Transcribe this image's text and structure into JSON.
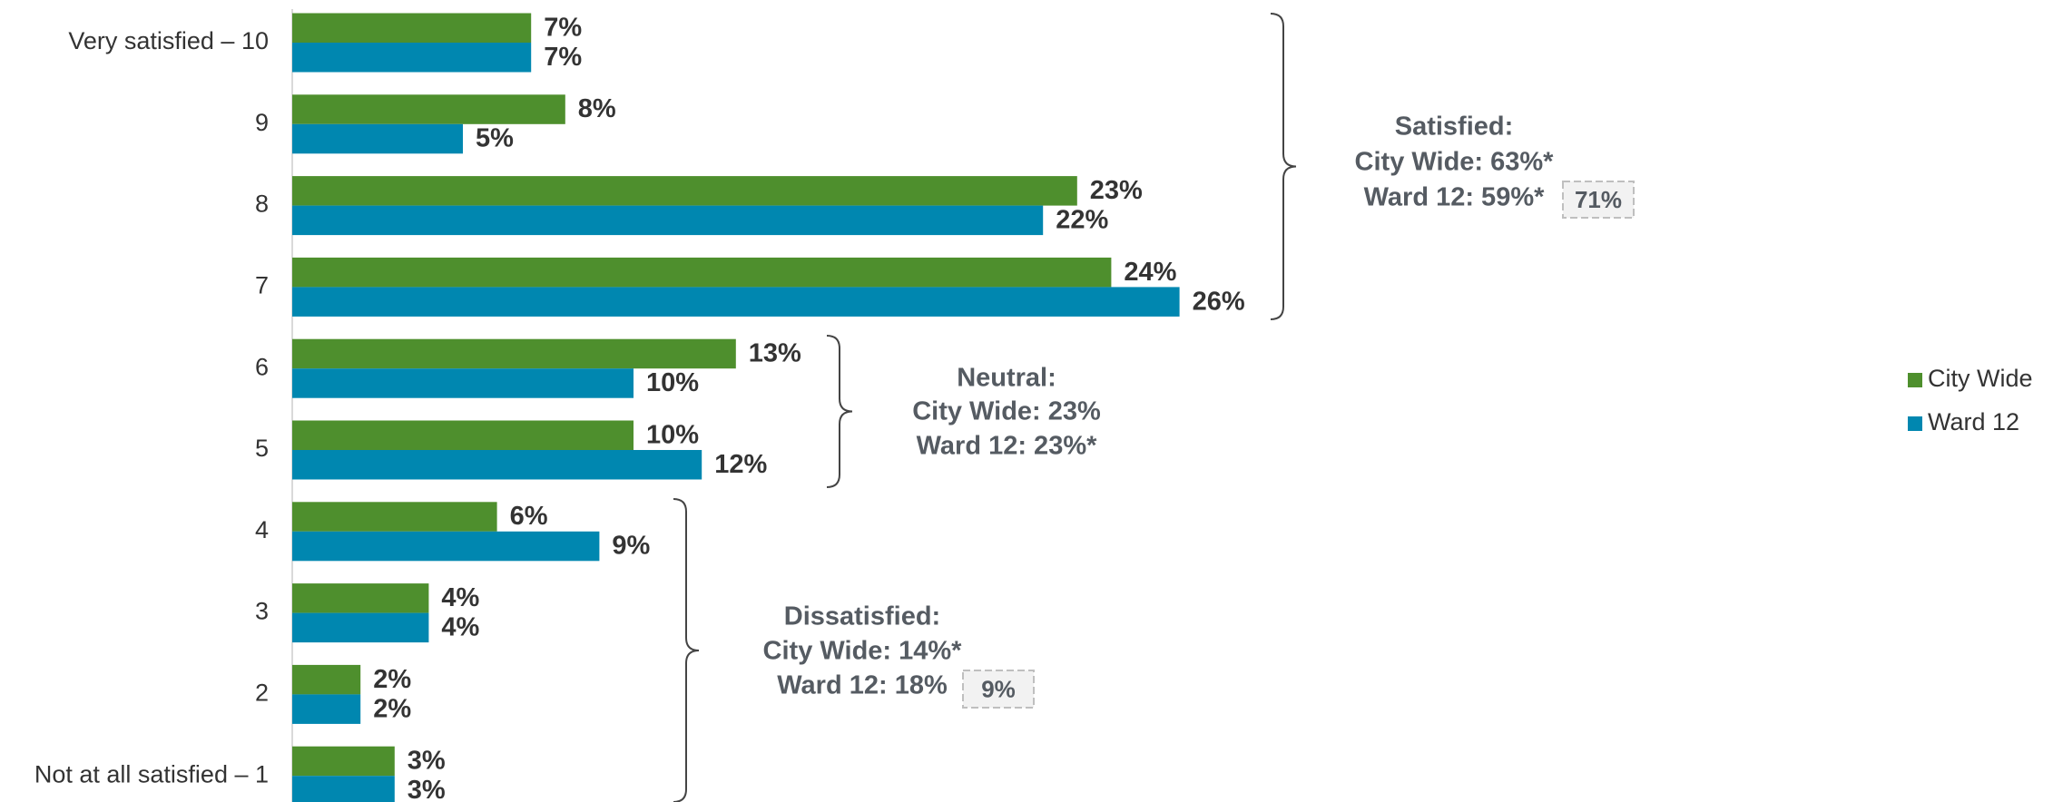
{
  "chart_data": {
    "type": "bar",
    "orientation": "horizontal",
    "categories": [
      "Very satisfied – 10",
      "9",
      "8",
      "7",
      "6",
      "5",
      "4",
      "3",
      "2",
      "Not at all satisfied – 1"
    ],
    "series": [
      {
        "name": "City Wide",
        "color": "#4e8f2d",
        "values": [
          7,
          8,
          23,
          24,
          13,
          10,
          6,
          4,
          2,
          3
        ],
        "value_labels": [
          "7%",
          "8%",
          "23%",
          "24%",
          "13%",
          "10%",
          "6%",
          "4%",
          "2%",
          "3%"
        ]
      },
      {
        "name": "Ward 12",
        "color": "#0087b0",
        "values": [
          7,
          5,
          22,
          26,
          10,
          12,
          9,
          4,
          2,
          3
        ],
        "value_labels": [
          "7%",
          "5%",
          "22%",
          "26%",
          "10%",
          "12%",
          "9%",
          "4%",
          "2%",
          "3%"
        ]
      }
    ],
    "legend": "right",
    "annotations": [
      {
        "lines": [
          "Satisfied:",
          "City Wide: 63%*",
          "Ward 12: 59%*"
        ],
        "box": "71%"
      },
      {
        "lines": [
          "Neutral:",
          "City Wide: 23%",
          "Ward 12: 23%*"
        ]
      },
      {
        "lines": [
          "Dissatisfied:",
          "City Wide: 14%*",
          "Ward 12: 18%"
        ],
        "box": "9%"
      }
    ]
  }
}
